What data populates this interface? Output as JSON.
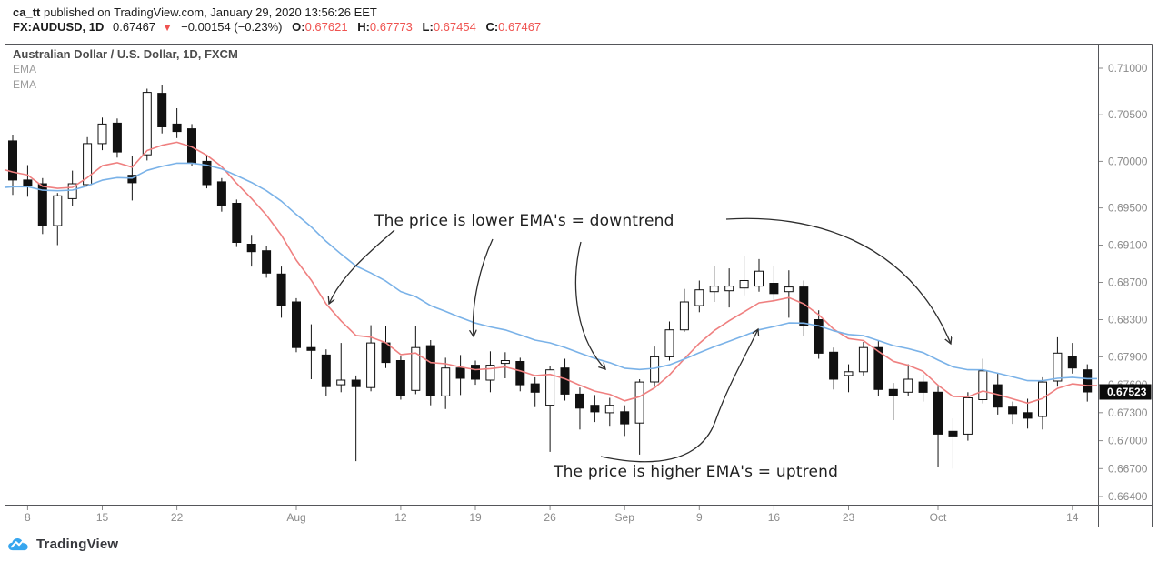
{
  "header": {
    "publish_user": "ca_tt",
    "publish_rest": " published on TradingView.com, January 29, 2020 13:56:26 EET",
    "symbol": "FX:AUDUSD, 1D",
    "last_price": "0.67467",
    "direction_icon": "▼",
    "change": "−0.00154 (−0.23%)",
    "ohlc": {
      "o_label": "O:",
      "o": "0.67621",
      "h_label": "H:",
      "h": "0.67773",
      "l_label": "L:",
      "l": "0.67454",
      "c_label": "C:",
      "c": "0.67467"
    }
  },
  "chart": {
    "title": "Australian Dollar / U.S. Dollar, 1D, FXCM",
    "legend": [
      "EMA",
      "EMA"
    ],
    "annotations": {
      "downtrend": "The price is lower EMA's = downtrend",
      "uptrend": "The price is higher EMA's = uptrend"
    },
    "last_price_label": "0.67523"
  },
  "footer": {
    "brand": "TradingView"
  },
  "chart_data": {
    "type": "candlestick",
    "title": "Australian Dollar / U.S. Dollar, 1D, FXCM",
    "symbol": "AUDUSD",
    "timeframe": "1D",
    "price_axis_range": [
      0.664,
      0.71
    ],
    "last_close": 0.67523,
    "y_ticks": [
      {
        "price": 0.71,
        "label": "0.71000"
      },
      {
        "price": 0.705,
        "label": "0.70500"
      },
      {
        "price": 0.7,
        "label": "0.70000"
      },
      {
        "price": 0.695,
        "label": "0.69500"
      },
      {
        "price": 0.691,
        "label": "0.69100"
      },
      {
        "price": 0.687,
        "label": "0.68700"
      },
      {
        "price": 0.683,
        "label": "0.68300"
      },
      {
        "price": 0.679,
        "label": "0.67900"
      },
      {
        "price": 0.676,
        "label": "0.67600"
      },
      {
        "price": 0.673,
        "label": "0.67300"
      },
      {
        "price": 0.67,
        "label": "0.67000"
      },
      {
        "price": 0.667,
        "label": "0.66700"
      },
      {
        "price": 0.664,
        "label": "0.66400"
      }
    ],
    "x_ticks": [
      {
        "index": 1,
        "label": "8"
      },
      {
        "index": 6,
        "label": "15"
      },
      {
        "index": 11,
        "label": "22"
      },
      {
        "index": 19,
        "label": "Aug"
      },
      {
        "index": 26,
        "label": "12"
      },
      {
        "index": 31,
        "label": "19"
      },
      {
        "index": 36,
        "label": "26"
      },
      {
        "index": 41,
        "label": "Sep"
      },
      {
        "index": 46,
        "label": "9"
      },
      {
        "index": 51,
        "label": "16"
      },
      {
        "index": 56,
        "label": "23"
      },
      {
        "index": 62,
        "label": "Oct"
      },
      {
        "index": 71,
        "label": "14"
      }
    ],
    "candles": [
      [
        0.7022,
        0.7028,
        0.6964,
        0.698
      ],
      [
        0.698,
        0.6996,
        0.6962,
        0.6974
      ],
      [
        0.6976,
        0.6982,
        0.6922,
        0.6931
      ],
      [
        0.6931,
        0.6966,
        0.691,
        0.6963
      ],
      [
        0.696,
        0.699,
        0.6952,
        0.6976
      ],
      [
        0.6975,
        0.7026,
        0.6973,
        0.7019
      ],
      [
        0.7019,
        0.7047,
        0.7012,
        0.704
      ],
      [
        0.7041,
        0.7046,
        0.7004,
        0.701
      ],
      [
        0.6985,
        0.7006,
        0.6958,
        0.6977
      ],
      [
        0.7007,
        0.7078,
        0.7001,
        0.7074
      ],
      [
        0.7073,
        0.7082,
        0.703,
        0.7037
      ],
      [
        0.704,
        0.7057,
        0.7025,
        0.7032
      ],
      [
        0.7035,
        0.704,
        0.6995,
        0.6998
      ],
      [
        0.7,
        0.7006,
        0.6971,
        0.6975
      ],
      [
        0.6978,
        0.6982,
        0.6946,
        0.6952
      ],
      [
        0.6955,
        0.6959,
        0.6908,
        0.6913
      ],
      [
        0.6911,
        0.6921,
        0.6887,
        0.6903
      ],
      [
        0.6904,
        0.6909,
        0.6875,
        0.688
      ],
      [
        0.6879,
        0.6887,
        0.6832,
        0.6845
      ],
      [
        0.6849,
        0.6853,
        0.6795,
        0.68
      ],
      [
        0.68,
        0.6825,
        0.6766,
        0.6797
      ],
      [
        0.6792,
        0.6798,
        0.6748,
        0.6758
      ],
      [
        0.676,
        0.6805,
        0.6752,
        0.6765
      ],
      [
        0.6765,
        0.677,
        0.6678,
        0.6758
      ],
      [
        0.6757,
        0.6824,
        0.6753,
        0.6805
      ],
      [
        0.6805,
        0.6823,
        0.6778,
        0.6784
      ],
      [
        0.6786,
        0.6791,
        0.6744,
        0.6748
      ],
      [
        0.6754,
        0.6823,
        0.675,
        0.68
      ],
      [
        0.6802,
        0.6808,
        0.6738,
        0.6748
      ],
      [
        0.6748,
        0.6789,
        0.6734,
        0.6778
      ],
      [
        0.6778,
        0.6792,
        0.6749,
        0.6767
      ],
      [
        0.6781,
        0.6786,
        0.676,
        0.6766
      ],
      [
        0.6765,
        0.6796,
        0.6752,
        0.6781
      ],
      [
        0.6783,
        0.6795,
        0.6767,
        0.6786
      ],
      [
        0.6785,
        0.6789,
        0.6753,
        0.676
      ],
      [
        0.6761,
        0.6768,
        0.6736,
        0.6752
      ],
      [
        0.6738,
        0.678,
        0.6688,
        0.6776
      ],
      [
        0.6778,
        0.6788,
        0.6743,
        0.675
      ],
      [
        0.675,
        0.6757,
        0.6712,
        0.6735
      ],
      [
        0.6738,
        0.6749,
        0.672,
        0.6731
      ],
      [
        0.673,
        0.6746,
        0.6716,
        0.6738
      ],
      [
        0.6731,
        0.6738,
        0.6705,
        0.6718
      ],
      [
        0.6719,
        0.6766,
        0.6685,
        0.6763
      ],
      [
        0.6763,
        0.6801,
        0.6759,
        0.679
      ],
      [
        0.679,
        0.6828,
        0.6786,
        0.6819
      ],
      [
        0.6819,
        0.6863,
        0.6817,
        0.6849
      ],
      [
        0.6845,
        0.6872,
        0.6838,
        0.6862
      ],
      [
        0.686,
        0.6888,
        0.6849,
        0.6866
      ],
      [
        0.6861,
        0.6885,
        0.6843,
        0.6866
      ],
      [
        0.6864,
        0.6898,
        0.6856,
        0.6872
      ],
      [
        0.6866,
        0.6895,
        0.686,
        0.6882
      ],
      [
        0.6869,
        0.6888,
        0.685,
        0.6858
      ],
      [
        0.686,
        0.6883,
        0.6832,
        0.6865
      ],
      [
        0.6865,
        0.6872,
        0.6812,
        0.6824
      ],
      [
        0.683,
        0.684,
        0.6788,
        0.6794
      ],
      [
        0.6795,
        0.68,
        0.6755,
        0.6766
      ],
      [
        0.677,
        0.6782,
        0.6752,
        0.6774
      ],
      [
        0.6774,
        0.6806,
        0.677,
        0.68
      ],
      [
        0.68,
        0.6808,
        0.6748,
        0.6755
      ],
      [
        0.6755,
        0.6762,
        0.6722,
        0.6748
      ],
      [
        0.6752,
        0.6782,
        0.6748,
        0.6766
      ],
      [
        0.6763,
        0.6771,
        0.6742,
        0.6752
      ],
      [
        0.6752,
        0.6758,
        0.6672,
        0.6707
      ],
      [
        0.671,
        0.6724,
        0.667,
        0.6705
      ],
      [
        0.6707,
        0.6752,
        0.67,
        0.6746
      ],
      [
        0.6744,
        0.6788,
        0.674,
        0.6775
      ],
      [
        0.676,
        0.6772,
        0.6728,
        0.6736
      ],
      [
        0.6736,
        0.6742,
        0.6718,
        0.6729
      ],
      [
        0.673,
        0.6745,
        0.6713,
        0.6724
      ],
      [
        0.6726,
        0.6768,
        0.6712,
        0.6763
      ],
      [
        0.6764,
        0.6811,
        0.6758,
        0.6794
      ],
      [
        0.679,
        0.6805,
        0.6772,
        0.6778
      ],
      [
        0.6776,
        0.6782,
        0.6742,
        0.67523
      ]
    ],
    "emas": [
      {
        "label": "EMA",
        "period": 8,
        "color": "#ef8080",
        "seed": 0.6991
      },
      {
        "label": "EMA",
        "period": 21,
        "color": "#7ab2e8",
        "seed": 0.6972
      }
    ],
    "colors": {
      "up": "#ffffff",
      "down": "#111111",
      "badge_bg": "#0a0a0a",
      "badge_text": "#ffffff",
      "axis_text": "#8a8a8a",
      "frame": "#55565a",
      "arrow": "#2d2d2d"
    }
  }
}
